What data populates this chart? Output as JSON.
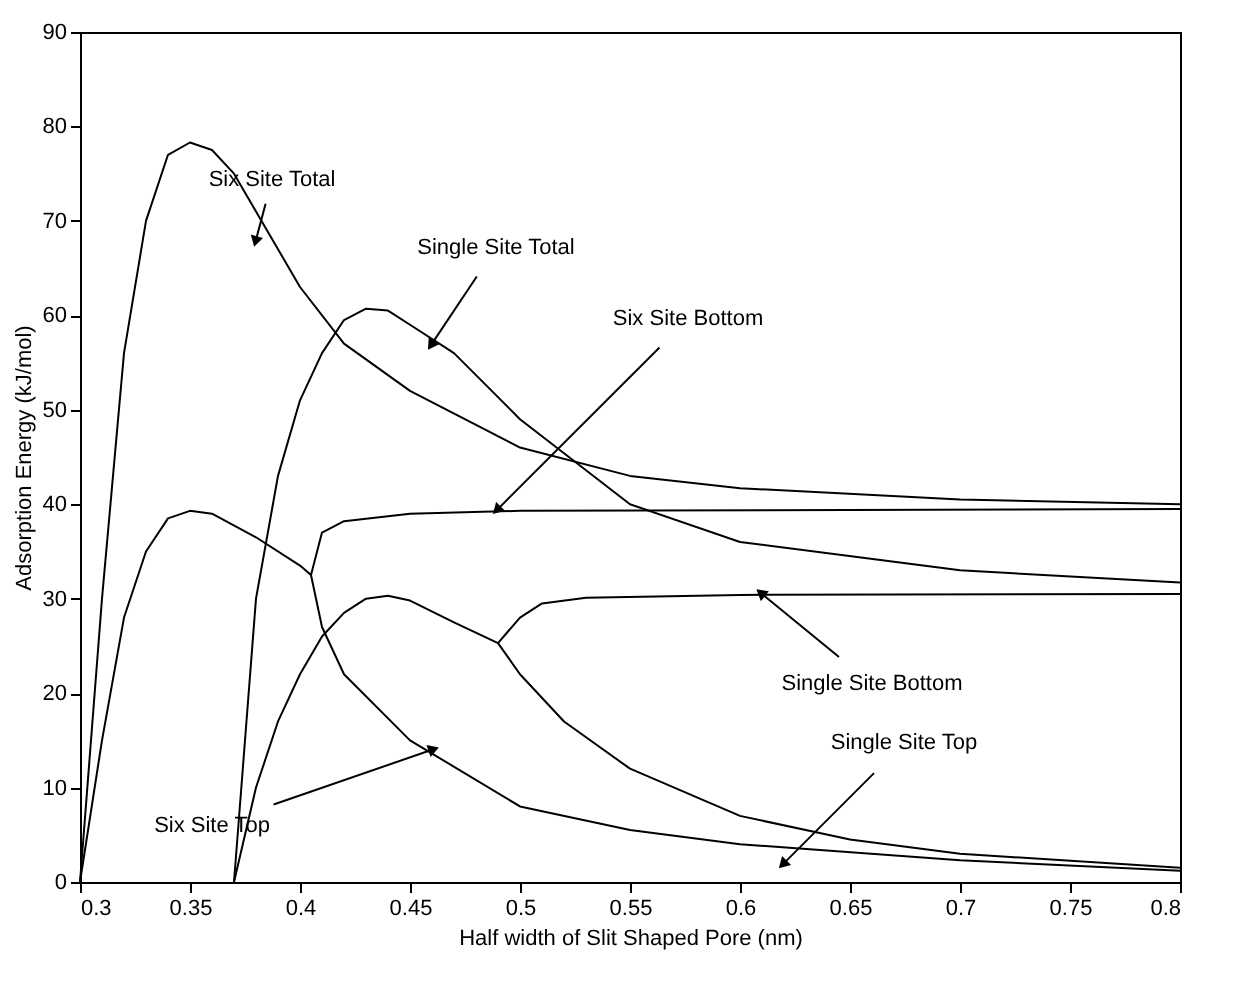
{
  "chart_data": {
    "type": "line",
    "xlabel": "Half width of Slit Shaped Pore (nm)",
    "ylabel": "Adsorption Energy (kJ/mol)",
    "xlim": [
      0.3,
      0.8
    ],
    "ylim": [
      0,
      90
    ],
    "xticks": [
      0.3,
      0.35,
      0.4,
      0.45,
      0.5,
      0.55,
      0.6,
      0.65,
      0.7,
      0.75,
      0.8
    ],
    "yticks": [
      0,
      10,
      20,
      30,
      40,
      50,
      60,
      70,
      80,
      90
    ],
    "grid": false,
    "legend": false,
    "marker": "none",
    "line_style": "solid",
    "series": [
      {
        "color": "#000000",
        "x": [
          0.3,
          0.31,
          0.32,
          0.33,
          0.34,
          0.35,
          0.36,
          0.37,
          0.38,
          0.4,
          0.42,
          0.45,
          0.5,
          0.55,
          0.6,
          0.7,
          0.8
        ],
        "values": [
          0,
          30,
          56,
          70,
          77,
          78.3,
          77.5,
          75,
          71,
          63,
          57,
          52,
          46,
          43,
          41.7,
          40.5,
          40
        ]
      },
      {
        "color": "#000000",
        "x": [
          0.37,
          0.38,
          0.39,
          0.4,
          0.41,
          0.42,
          0.43,
          0.44,
          0.45,
          0.47,
          0.5,
          0.55,
          0.6,
          0.7,
          0.8
        ],
        "values": [
          0,
          30,
          43,
          51,
          56,
          59.5,
          60.7,
          60.5,
          59,
          56,
          49,
          40,
          36,
          33,
          31.7
        ]
      },
      {
        "color": "#000000",
        "x": [
          0.3,
          0.31,
          0.32,
          0.33,
          0.34,
          0.35,
          0.36,
          0.38,
          0.4,
          0.405,
          0.41,
          0.42,
          0.45,
          0.5,
          0.8
        ],
        "values": [
          0,
          15,
          28,
          35,
          38.5,
          39.3,
          39,
          36.5,
          33.5,
          32.5,
          37,
          38.2,
          39,
          39.3,
          39.5
        ]
      },
      {
        "color": "#000000",
        "x": [
          0.405,
          0.41,
          0.42,
          0.45,
          0.5,
          0.55,
          0.6,
          0.7,
          0.8
        ],
        "values": [
          32.5,
          27,
          22,
          15,
          8,
          5.5,
          4,
          2.3,
          1.2
        ]
      },
      {
        "color": "#000000",
        "x": [
          0.37,
          0.38,
          0.39,
          0.4,
          0.41,
          0.42,
          0.43,
          0.44,
          0.45,
          0.47,
          0.49,
          0.5,
          0.51,
          0.53,
          0.6,
          0.8
        ],
        "values": [
          0,
          10,
          17,
          22,
          26,
          28.5,
          30,
          30.3,
          29.8,
          27.5,
          25.3,
          28,
          29.5,
          30.1,
          30.4,
          30.5
        ]
      },
      {
        "color": "#000000",
        "x": [
          0.49,
          0.5,
          0.52,
          0.55,
          0.6,
          0.65,
          0.7,
          0.8
        ],
        "values": [
          25.3,
          22,
          17,
          12,
          7,
          4.5,
          3,
          1.5
        ]
      }
    ],
    "annotations": [
      {
        "text": "Six Site Total",
        "x": 0.38,
        "y": 68
      },
      {
        "text": "Single Site Total",
        "x": 0.46,
        "y": 57
      },
      {
        "text": "Six Site Bottom",
        "x": 0.49,
        "y": 39.5
      },
      {
        "text": "Single Site Bottom",
        "x": 0.61,
        "y": 30.5
      },
      {
        "text": "Single Site Top",
        "x": 0.62,
        "y": 2
      },
      {
        "text": "Six Site Top",
        "x": 0.46,
        "y": 14
      }
    ]
  }
}
